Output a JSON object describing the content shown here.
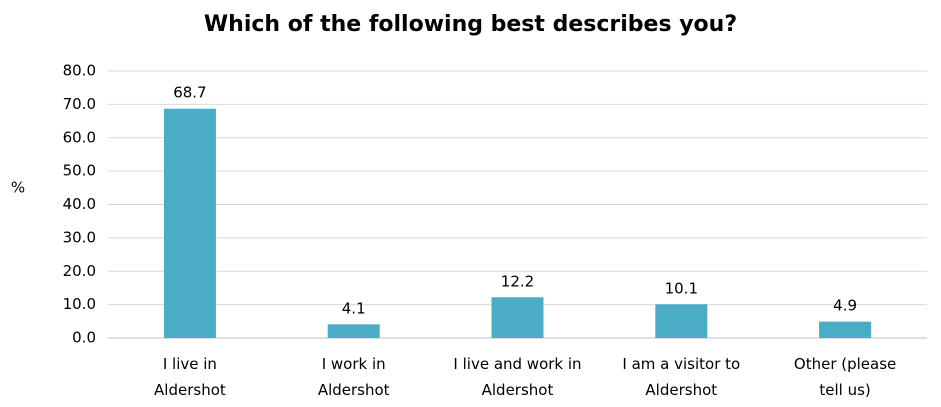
{
  "chart_data": {
    "type": "bar",
    "title": "Which of the following best describes you?",
    "xlabel": "",
    "ylabel": "%",
    "ylim": [
      0,
      80
    ],
    "yticks": [
      "0.0",
      "10.0",
      "20.0",
      "30.0",
      "40.0",
      "50.0",
      "60.0",
      "70.0",
      "80.0"
    ],
    "ytick_values": [
      0,
      10,
      20,
      30,
      40,
      50,
      60,
      70,
      80
    ],
    "categories": [
      [
        "I live in",
        "Aldershot"
      ],
      [
        "I work in",
        "Aldershot"
      ],
      [
        "I live and work in",
        "Aldershot"
      ],
      [
        "I am a visitor to",
        "Aldershot"
      ],
      [
        "Other (please",
        "tell us)"
      ]
    ],
    "values": [
      68.7,
      4.1,
      12.2,
      10.1,
      4.9
    ],
    "value_labels": [
      "68.7",
      "4.1",
      "12.2",
      "10.1",
      "4.9"
    ],
    "grid": true,
    "legend": "none",
    "bar_color": "#4BACC6",
    "grid_color": "#D9D9D9"
  }
}
